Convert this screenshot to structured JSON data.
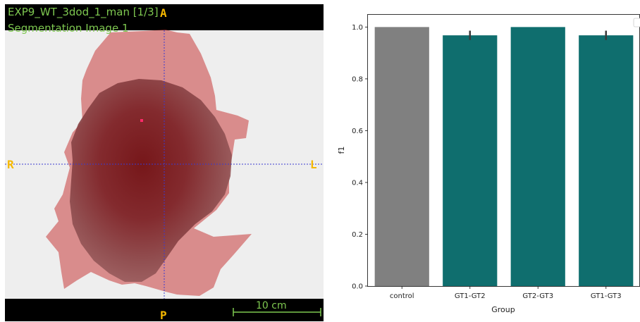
{
  "viewer": {
    "title": "EXP9_WT_3dod_1_man [1/3]",
    "subtitle": "Segmentation Image 1",
    "orientation": {
      "top": "A",
      "bottom": "P",
      "left": "R",
      "right": "L"
    },
    "scale_bar_label": "10 cm",
    "colors": {
      "overlay_text": "#7ec850",
      "orientation": "#f5b800",
      "mask": "#c83c3c",
      "crosshair": "#3a3ad0",
      "background": "#000000"
    }
  },
  "chart_data": {
    "type": "bar",
    "categories": [
      "control",
      "GT1-GT2",
      "GT2-GT3",
      "GT1-GT3"
    ],
    "values": [
      1.0,
      0.968,
      1.0,
      0.968
    ],
    "error": [
      0,
      0.018,
      0,
      0.018
    ],
    "colors": [
      "#808080",
      "#0f6e6e",
      "#0f6e6e",
      "#0f6e6e"
    ],
    "xlabel": "Group",
    "ylabel": "f1",
    "ylim": [
      0,
      1.05
    ],
    "yticks": [
      "0.0",
      "0.2",
      "0.4",
      "0.6",
      "0.8",
      "1.0"
    ],
    "grid": false
  }
}
